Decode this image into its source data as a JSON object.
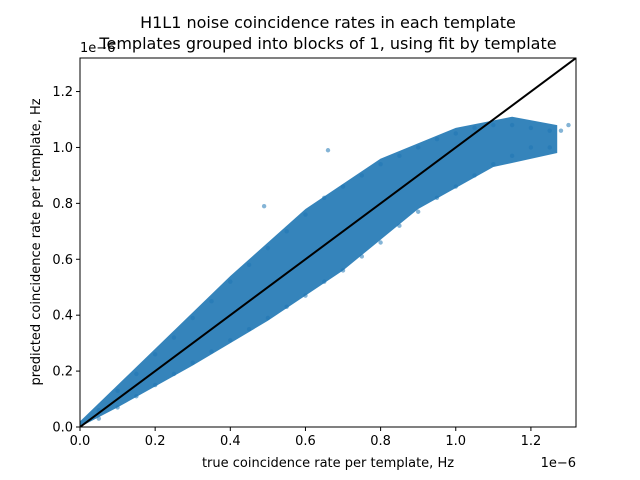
{
  "chart_data": {
    "type": "scatter",
    "title": "H1L1 noise coincidence rates in each template",
    "subtitle": "Templates grouped into blocks of 1, using fit by template",
    "xlabel": "true coincidence rate per template, Hz",
    "ylabel": "predicted coincidence rate per template, Hz",
    "x_offset_label": "1e−6",
    "y_offset_label": "1e−6",
    "xlim": [
      0,
      1.32e-06
    ],
    "ylim": [
      0,
      1.32e-06
    ],
    "x_ticks": [
      0.0,
      0.2,
      0.4,
      0.6,
      0.8,
      1.0,
      1.2
    ],
    "x_tick_labels": [
      "0.0",
      "0.2",
      "0.4",
      "0.6",
      "0.8",
      "1.0",
      "1.2"
    ],
    "y_ticks": [
      0.0,
      0.2,
      0.4,
      0.6,
      0.8,
      1.0,
      1.2
    ],
    "y_tick_labels": [
      "0.0",
      "0.2",
      "0.4",
      "0.6",
      "0.8",
      "1.0",
      "1.2"
    ],
    "grid": false,
    "scatter_color": "#1f77b4",
    "scatter_alpha": 0.25,
    "points": [
      [
        0.0,
        0.0
      ],
      [
        0.05,
        0.06
      ],
      [
        0.05,
        0.03
      ],
      [
        0.1,
        0.13
      ],
      [
        0.1,
        0.07
      ],
      [
        0.15,
        0.19
      ],
      [
        0.15,
        0.11
      ],
      [
        0.2,
        0.26
      ],
      [
        0.2,
        0.15
      ],
      [
        0.25,
        0.32
      ],
      [
        0.25,
        0.19
      ],
      [
        0.3,
        0.39
      ],
      [
        0.3,
        0.23
      ],
      [
        0.35,
        0.45
      ],
      [
        0.35,
        0.27
      ],
      [
        0.4,
        0.52
      ],
      [
        0.4,
        0.31
      ],
      [
        0.45,
        0.58
      ],
      [
        0.45,
        0.35
      ],
      [
        0.5,
        0.64
      ],
      [
        0.5,
        0.39
      ],
      [
        0.55,
        0.7
      ],
      [
        0.55,
        0.43
      ],
      [
        0.6,
        0.76
      ],
      [
        0.6,
        0.47
      ],
      [
        0.65,
        0.82
      ],
      [
        0.65,
        0.52
      ],
      [
        0.7,
        0.86
      ],
      [
        0.7,
        0.56
      ],
      [
        0.75,
        0.9
      ],
      [
        0.75,
        0.61
      ],
      [
        0.8,
        0.94
      ],
      [
        0.8,
        0.66
      ],
      [
        0.85,
        0.97
      ],
      [
        0.85,
        0.72
      ],
      [
        0.9,
        1.0
      ],
      [
        0.9,
        0.77
      ],
      [
        0.95,
        1.03
      ],
      [
        0.95,
        0.82
      ],
      [
        1.0,
        1.05
      ],
      [
        1.0,
        0.86
      ],
      [
        1.05,
        1.07
      ],
      [
        1.05,
        0.9
      ],
      [
        1.1,
        1.08
      ],
      [
        1.1,
        0.94
      ],
      [
        1.15,
        1.08
      ],
      [
        1.15,
        0.97
      ],
      [
        1.2,
        1.07
      ],
      [
        1.2,
        1.0
      ],
      [
        1.25,
        1.06
      ],
      [
        1.28,
        1.06
      ],
      [
        1.3,
        1.08
      ],
      [
        1.25,
        1.0
      ],
      [
        0.49,
        0.79
      ],
      [
        0.66,
        0.99
      ]
    ],
    "reference_line": {
      "from": [
        0,
        0
      ],
      "to": [
        1.32,
        1.32
      ],
      "color": "#000000"
    }
  }
}
